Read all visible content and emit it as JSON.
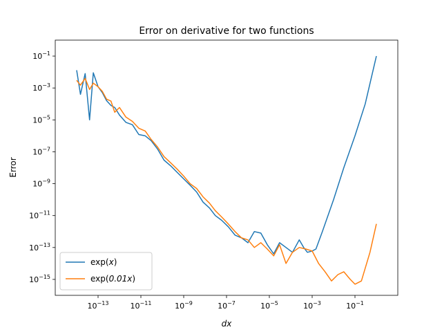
{
  "chart_data": {
    "type": "line",
    "title": "Error on derivative for two functions",
    "xlabel": "dx",
    "ylabel": "Error",
    "xscale": "log",
    "yscale": "log",
    "xlim": [
      1e-15,
      10
    ],
    "ylim": [
      1e-16,
      1
    ],
    "xticks": [
      {
        "value": 1e-13,
        "base": "10",
        "exp": "−13"
      },
      {
        "value": 1e-11,
        "base": "10",
        "exp": "−11"
      },
      {
        "value": 1e-09,
        "base": "10",
        "exp": "−9"
      },
      {
        "value": 1e-07,
        "base": "10",
        "exp": "−7"
      },
      {
        "value": 1e-05,
        "base": "10",
        "exp": "−5"
      },
      {
        "value": 0.001,
        "base": "10",
        "exp": "−3"
      },
      {
        "value": 0.1,
        "base": "10",
        "exp": "−1"
      }
    ],
    "yticks": [
      {
        "value": 1e-15,
        "base": "10",
        "exp": "−15"
      },
      {
        "value": 1e-13,
        "base": "10",
        "exp": "−13"
      },
      {
        "value": 1e-11,
        "base": "10",
        "exp": "−11"
      },
      {
        "value": 1e-09,
        "base": "10",
        "exp": "−9"
      },
      {
        "value": 1e-07,
        "base": "10",
        "exp": "−7"
      },
      {
        "value": 1e-05,
        "base": "10",
        "exp": "−5"
      },
      {
        "value": 0.001,
        "base": "10",
        "exp": "−3"
      },
      {
        "value": 0.1,
        "base": "10",
        "exp": "−1"
      }
    ],
    "grid": false,
    "legend": "lower-left",
    "series": [
      {
        "name": "exp(x)",
        "legend_prefix": "exp(",
        "legend_arg": "x",
        "legend_suffix": ")",
        "color": "#1f77b4",
        "x": [
          1e-14,
          1.5e-14,
          2.5e-14,
          4e-14,
          6e-14,
          1e-13,
          1.6e-13,
          2.5e-13,
          4e-13,
          6e-13,
          1e-12,
          2e-12,
          4e-12,
          8e-12,
          1.6e-11,
          3e-11,
          6e-11,
          1.2e-10,
          2.5e-10,
          5e-10,
          1e-09,
          2e-09,
          4e-09,
          8e-09,
          1.6e-08,
          3e-08,
          6e-08,
          1.2e-07,
          2.5e-07,
          5e-07,
          1e-06,
          2e-06,
          4e-06,
          8e-06,
          1.6e-05,
          3e-05,
          6e-05,
          0.00012,
          0.00025,
          0.0004,
          0.0006,
          0.001,
          0.0015,
          0.003,
          0.01,
          0.03,
          0.1,
          0.3,
          1
        ],
        "y": [
          0.013,
          0.0004,
          0.008,
          1e-05,
          0.009,
          0.0012,
          0.0005,
          0.00016,
          8e-05,
          6e-05,
          2e-05,
          7e-06,
          5e-06,
          1.2e-06,
          1e-06,
          5e-07,
          1.5e-07,
          3e-08,
          1.3e-08,
          5e-09,
          2e-09,
          8e-10,
          3e-10,
          7e-11,
          3e-11,
          1e-11,
          5e-12,
          2e-12,
          6e-13,
          4e-13,
          2e-13,
          1e-12,
          8e-13,
          1.5e-13,
          4e-14,
          2e-13,
          1e-13,
          5e-14,
          3e-13,
          1e-13,
          5e-14,
          6e-14,
          8e-14,
          1e-12,
          1e-10,
          1e-08,
          1e-06,
          0.0001,
          0.1
        ]
      },
      {
        "name": "exp(0.01x)",
        "legend_prefix": "exp(",
        "legend_arg": "0.01x",
        "legend_suffix": ")",
        "color": "#ff7f0e",
        "x": [
          1e-14,
          1.5e-14,
          2.5e-14,
          4e-14,
          6e-14,
          1e-13,
          1.6e-13,
          2.5e-13,
          4e-13,
          6e-13,
          1e-12,
          2e-12,
          4e-12,
          8e-12,
          1.6e-11,
          3e-11,
          6e-11,
          1.2e-10,
          2.5e-10,
          5e-10,
          1e-09,
          2e-09,
          4e-09,
          8e-09,
          1.6e-08,
          3e-08,
          6e-08,
          1.2e-07,
          2.5e-07,
          5e-07,
          1e-06,
          2e-06,
          4e-06,
          8e-06,
          1.6e-05,
          3e-05,
          6e-05,
          0.00012,
          0.00025,
          0.0005,
          0.001,
          0.002,
          0.004,
          0.008,
          0.016,
          0.03,
          0.06,
          0.1,
          0.2,
          0.5,
          1
        ],
        "y": [
          0.003,
          0.0015,
          0.004,
          0.0008,
          0.002,
          0.0012,
          0.0006,
          0.0002,
          0.00015,
          3e-05,
          6e-05,
          1.5e-05,
          8e-06,
          3e-06,
          2e-06,
          6e-07,
          2e-07,
          5e-08,
          2e-08,
          8e-09,
          3e-09,
          1e-09,
          5e-10,
          1.5e-10,
          6e-11,
          2e-11,
          8e-12,
          3e-12,
          1e-12,
          4e-13,
          3e-13,
          1e-13,
          2e-13,
          8e-14,
          3e-14,
          1.5e-13,
          1e-14,
          5e-14,
          1e-13,
          8e-14,
          6e-14,
          1e-14,
          3e-15,
          8e-16,
          2e-15,
          3e-15,
          1e-15,
          5e-16,
          8e-16,
          5e-14,
          3e-12
        ]
      }
    ]
  }
}
